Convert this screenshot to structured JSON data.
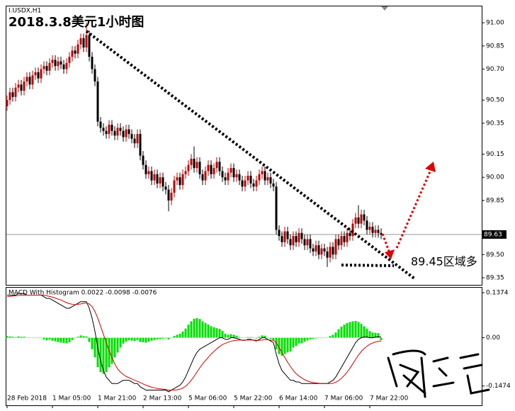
{
  "chart_data": {
    "type": "candlestick",
    "symbol": "I.USDX,H1",
    "title": "2018.3.8美元1小时图",
    "annotation": "89.45区域多",
    "up_color": "#c00000",
    "down_color": "#000000",
    "ylim": [
      89.304,
      91.106
    ],
    "yticks": [
      {
        "value": 91,
        "label": "91.00"
      },
      {
        "value": 90.85,
        "label": "90.85"
      },
      {
        "value": 90.7,
        "label": "90.70"
      },
      {
        "value": 90.5,
        "label": "90.50"
      },
      {
        "value": 90.35,
        "label": "90.35"
      },
      {
        "value": 90.15,
        "label": "90.15"
      },
      {
        "value": 90,
        "label": "90.00"
      },
      {
        "value": 89.85,
        "label": "89.85"
      },
      {
        "value": 89.5,
        "label": "89.50"
      },
      {
        "value": 89.35,
        "label": "89.35"
      }
    ],
    "current_price": 89.63,
    "categories": [
      "28 Feb 2018",
      null,
      null,
      null,
      null,
      null,
      null,
      null,
      null,
      null,
      null,
      null,
      null,
      null,
      null,
      null,
      "1 Mar 05:00",
      null,
      null,
      null,
      null,
      null,
      null,
      null,
      null,
      null,
      null,
      null,
      null,
      null,
      null,
      null,
      "1 Mar 21:00",
      null,
      null,
      null,
      null,
      null,
      null,
      null,
      null,
      null,
      null,
      null,
      null,
      null,
      null,
      null,
      "2 Mar 13:00",
      null,
      null,
      null,
      null,
      null,
      null,
      null,
      null,
      null,
      null,
      null,
      null,
      null,
      null,
      null,
      "5 Mar 06:00",
      null,
      null,
      null,
      null,
      null,
      null,
      null,
      null,
      null,
      null,
      null,
      null,
      null,
      null,
      null,
      "5 Mar 22:00",
      null,
      null,
      null,
      null,
      null,
      null,
      null,
      null,
      null,
      null,
      null,
      null,
      null,
      null,
      null,
      "6 Mar 14:00",
      null,
      null,
      null,
      null,
      null,
      null,
      null,
      null,
      null,
      null,
      null,
      null,
      null,
      null,
      null,
      "7 Mar 06:00",
      null,
      null,
      null,
      null,
      null,
      null,
      null,
      null,
      null,
      null,
      null,
      null,
      null,
      null,
      null,
      "7 Mar 22:00",
      null,
      null,
      null,
      null
    ],
    "open": [
      90.46,
      90.5,
      90.55,
      90.52,
      90.58,
      90.6,
      90.56,
      90.62,
      90.65,
      90.6,
      90.66,
      90.68,
      90.64,
      90.7,
      90.72,
      90.69,
      90.74,
      90.76,
      90.72,
      90.75,
      90.73,
      90.7,
      90.74,
      90.78,
      90.82,
      90.8,
      90.86,
      90.9,
      90.84,
      90.92,
      90.78,
      90.7,
      90.62,
      90.36,
      90.32,
      90.3,
      90.28,
      90.34,
      90.3,
      90.27,
      90.32,
      90.3,
      90.26,
      90.31,
      90.28,
      90.25,
      90.22,
      90.28,
      90.14,
      90.08,
      90.02,
      90.04,
      89.98,
      90.02,
      89.96,
      90.0,
      89.94,
      89.92,
      89.85,
      89.9,
      89.98,
      90.0,
      89.95,
      90.02,
      90.04,
      90.08,
      90.12,
      90.06,
      90.1,
      90.02,
      89.98,
      90.04,
      90.08,
      90.02,
      90.06,
      90.1,
      90.04,
      90.0,
      89.98,
      90.03,
      90.06,
      90.0,
      90.02,
      89.98,
      89.94,
      89.98,
      90.01,
      89.96,
      89.94,
      89.98,
      90.02,
      90.04,
      89.98,
      90.0,
      89.96,
      89.94,
      89.66,
      89.62,
      89.58,
      89.65,
      89.6,
      89.56,
      89.62,
      89.58,
      89.64,
      89.6,
      89.56,
      89.6,
      89.54,
      89.52,
      89.56,
      89.5,
      89.54,
      89.52,
      89.48,
      89.55,
      89.5,
      89.6,
      89.56,
      89.62,
      89.58,
      89.64,
      89.62,
      89.7,
      89.74,
      89.7,
      89.76,
      89.72,
      89.66,
      89.68,
      89.64,
      89.66,
      89.64
    ],
    "high": [
      90.53,
      90.58,
      90.58,
      90.61,
      90.63,
      90.63,
      90.65,
      90.68,
      90.68,
      90.69,
      90.71,
      90.71,
      90.73,
      90.75,
      90.75,
      90.77,
      90.79,
      90.79,
      90.78,
      90.78,
      90.76,
      90.77,
      90.81,
      90.85,
      90.85,
      90.89,
      90.93,
      90.93,
      91.0,
      90.95,
      90.81,
      90.73,
      90.65,
      90.39,
      90.35,
      90.33,
      90.37,
      90.37,
      90.33,
      90.35,
      90.35,
      90.33,
      90.34,
      90.34,
      90.31,
      90.28,
      90.31,
      90.31,
      90.17,
      90.11,
      90.07,
      90.07,
      90.05,
      90.05,
      90.03,
      90.03,
      89.97,
      89.95,
      89.93,
      90.01,
      90.03,
      90.03,
      90.05,
      90.07,
      90.11,
      90.15,
      90.2,
      90.13,
      90.13,
      90.05,
      90.07,
      90.11,
      90.11,
      90.09,
      90.13,
      90.13,
      90.07,
      90.03,
      90.06,
      90.09,
      90.09,
      90.05,
      90.05,
      90.01,
      90.01,
      90.04,
      90.04,
      89.99,
      90.01,
      90.05,
      90.07,
      90.07,
      90.03,
      90.03,
      89.99,
      89.97,
      89.69,
      89.65,
      89.68,
      89.68,
      89.63,
      89.65,
      89.65,
      89.67,
      89.67,
      89.63,
      89.63,
      89.63,
      89.57,
      89.59,
      89.59,
      89.57,
      89.57,
      89.55,
      89.58,
      89.58,
      89.63,
      89.63,
      89.65,
      89.65,
      89.67,
      89.67,
      89.73,
      89.77,
      89.82,
      89.79,
      89.79,
      89.75,
      89.71,
      89.71,
      89.69,
      89.69,
      89.67
    ],
    "low": [
      90.43,
      90.47,
      90.49,
      90.49,
      90.55,
      90.53,
      90.53,
      90.59,
      90.57,
      90.57,
      90.63,
      90.61,
      90.61,
      90.67,
      90.66,
      90.66,
      90.71,
      90.69,
      90.69,
      90.7,
      90.67,
      90.67,
      90.71,
      90.75,
      90.77,
      90.77,
      90.83,
      90.81,
      90.81,
      90.75,
      90.67,
      90.59,
      90.33,
      90.29,
      90.27,
      90.25,
      90.25,
      90.27,
      90.24,
      90.24,
      90.27,
      90.23,
      90.23,
      90.25,
      90.22,
      90.19,
      90.19,
      90.11,
      90.05,
      89.99,
      89.99,
      89.95,
      89.95,
      89.93,
      89.93,
      89.91,
      89.89,
      89.78,
      89.82,
      89.87,
      89.95,
      89.92,
      89.92,
      89.99,
      90.01,
      90.05,
      90.03,
      90.03,
      89.99,
      89.95,
      89.95,
      90.01,
      89.99,
      89.99,
      90.03,
      90.01,
      89.97,
      89.95,
      89.95,
      90.0,
      89.97,
      89.97,
      89.95,
      89.91,
      89.91,
      89.95,
      89.93,
      89.91,
      89.91,
      89.95,
      89.99,
      89.95,
      89.95,
      89.93,
      89.91,
      89.63,
      89.59,
      89.55,
      89.55,
      89.57,
      89.53,
      89.53,
      89.55,
      89.55,
      89.57,
      89.53,
      89.53,
      89.51,
      89.49,
      89.49,
      89.47,
      89.47,
      89.49,
      89.42,
      89.45,
      89.47,
      89.47,
      89.53,
      89.53,
      89.55,
      89.55,
      89.59,
      89.59,
      89.67,
      89.67,
      89.67,
      89.69,
      89.63,
      89.63,
      89.61,
      89.61,
      89.61,
      89.6
    ],
    "close": [
      90.5,
      90.55,
      90.52,
      90.58,
      90.6,
      90.56,
      90.62,
      90.65,
      90.6,
      90.66,
      90.68,
      90.64,
      90.7,
      90.72,
      90.69,
      90.74,
      90.76,
      90.72,
      90.75,
      90.73,
      90.7,
      90.74,
      90.78,
      90.82,
      90.8,
      90.86,
      90.9,
      90.84,
      90.92,
      90.78,
      90.7,
      90.62,
      90.36,
      90.32,
      90.3,
      90.28,
      90.34,
      90.3,
      90.27,
      90.32,
      90.3,
      90.26,
      90.31,
      90.28,
      90.25,
      90.22,
      90.28,
      90.14,
      90.08,
      90.02,
      90.04,
      89.98,
      90.02,
      89.96,
      90.0,
      89.94,
      89.92,
      89.85,
      89.9,
      89.98,
      90.0,
      89.95,
      90.02,
      90.04,
      90.08,
      90.12,
      90.06,
      90.1,
      90.02,
      89.98,
      90.04,
      90.08,
      90.02,
      90.06,
      90.1,
      90.04,
      90.0,
      89.98,
      90.03,
      90.06,
      90.0,
      90.02,
      89.98,
      89.94,
      89.98,
      90.01,
      89.96,
      89.94,
      89.98,
      90.02,
      90.04,
      89.98,
      90.0,
      89.96,
      89.94,
      89.66,
      89.62,
      89.58,
      89.65,
      89.6,
      89.56,
      89.62,
      89.58,
      89.64,
      89.6,
      89.56,
      89.6,
      89.54,
      89.52,
      89.56,
      89.5,
      89.54,
      89.52,
      89.48,
      89.55,
      89.5,
      89.6,
      89.56,
      89.62,
      89.58,
      89.64,
      89.62,
      89.7,
      89.74,
      89.7,
      89.76,
      89.72,
      89.66,
      89.68,
      89.64,
      89.66,
      89.64,
      89.63
    ],
    "macd": {
      "title": "MACD With Histogram 0.0022 -0.0098 -0.0076",
      "ylim": [
        -0.2064,
        0.1527
      ],
      "yticks": [
        0.1374,
        {
          "value": 0,
          "label": "0.00"
        },
        -0.1474
      ],
      "histogram": {
        "color": "#00e000",
        "values": [
          0.005,
          0.004,
          0.003,
          0.002,
          0.004,
          0.003,
          0.003,
          0.0,
          0.0,
          0.0,
          0.0,
          0.0,
          0.0,
          -0.005,
          -0.008,
          -0.006,
          -0.009,
          -0.011,
          -0.013,
          -0.015,
          -0.016,
          -0.017,
          -0.014,
          -0.007,
          -0.001,
          0.003,
          0.007,
          0.005,
          0.004,
          -0.013,
          -0.035,
          -0.06,
          -0.09,
          -0.105,
          -0.11,
          -0.105,
          -0.09,
          -0.08,
          -0.06,
          -0.045,
          -0.03,
          -0.018,
          -0.012,
          -0.008,
          -0.009,
          -0.01,
          -0.007,
          -0.013,
          -0.014,
          -0.015,
          -0.012,
          -0.009,
          -0.007,
          -0.005,
          -0.004,
          -0.003,
          -0.002,
          -0.005,
          0.0,
          0.005,
          0.009,
          0.012,
          0.019,
          0.028,
          0.04,
          0.05,
          0.058,
          0.06,
          0.057,
          0.05,
          0.045,
          0.04,
          0.035,
          0.032,
          0.029,
          0.027,
          0.021,
          0.012,
          0.009,
          0.011,
          0.009,
          0.006,
          0.002,
          -0.001,
          -0.001,
          0.002,
          0.002,
          -0.001,
          -0.002,
          0.003,
          0.007,
          0.006,
          0.001,
          -0.003,
          -0.007,
          -0.035,
          -0.05,
          -0.055,
          -0.05,
          -0.045,
          -0.042,
          -0.03,
          -0.025,
          -0.018,
          -0.017,
          -0.012,
          -0.008,
          -0.005,
          -0.003,
          -0.002,
          -0.001,
          0.0,
          0.0,
          0.0,
          0.005,
          0.009,
          0.016,
          0.026,
          0.034,
          0.04,
          0.045,
          0.048,
          0.05,
          0.051,
          0.048,
          0.042,
          0.035,
          0.028,
          0.02,
          0.016,
          0.015,
          0.014,
          -0.0076
        ]
      },
      "lines": [
        {
          "color": "#000000",
          "values": [
            0.13,
            0.13,
            0.13,
            0.13,
            0.135,
            0.135,
            0.135,
            0.13,
            0.13,
            0.13,
            0.13,
            0.13,
            0.13,
            0.125,
            0.12,
            0.12,
            0.115,
            0.11,
            0.105,
            0.1,
            0.095,
            0.09,
            0.09,
            0.095,
            0.1,
            0.105,
            0.11,
            0.11,
            0.11,
            0.09,
            0.06,
            0.02,
            -0.03,
            -0.07,
            -0.1,
            -0.12,
            -0.13,
            -0.14,
            -0.14,
            -0.14,
            -0.135,
            -0.13,
            -0.13,
            -0.13,
            -0.135,
            -0.14,
            -0.14,
            -0.15,
            -0.155,
            -0.16,
            -0.16,
            -0.16,
            -0.16,
            -0.16,
            -0.16,
            -0.16,
            -0.16,
            -0.165,
            -0.16,
            -0.155,
            -0.15,
            -0.145,
            -0.135,
            -0.12,
            -0.1,
            -0.08,
            -0.06,
            -0.045,
            -0.035,
            -0.03,
            -0.025,
            -0.02,
            -0.015,
            -0.01,
            -0.005,
            0.0,
            0.0,
            -0.005,
            -0.005,
            0.0,
            0.0,
            -0.002,
            -0.005,
            -0.008,
            -0.008,
            -0.005,
            -0.005,
            -0.008,
            -0.01,
            -0.005,
            0.0,
            0.0,
            -0.005,
            -0.01,
            -0.015,
            -0.05,
            -0.08,
            -0.1,
            -0.11,
            -0.12,
            -0.13,
            -0.13,
            -0.135,
            -0.135,
            -0.14,
            -0.14,
            -0.14,
            -0.14,
            -0.14,
            -0.14,
            -0.14,
            -0.14,
            -0.14,
            -0.14,
            -0.135,
            -0.13,
            -0.12,
            -0.105,
            -0.09,
            -0.075,
            -0.06,
            -0.045,
            -0.03,
            -0.015,
            -0.005,
            0.0,
            0.002,
            0.002,
            0.0,
            0.0,
            0.002,
            0.003,
            0.0022
          ]
        },
        {
          "color": "#d00000",
          "values": [
            0.125,
            0.126,
            0.127,
            0.128,
            0.129,
            0.13,
            0.13,
            0.13,
            0.13,
            0.13,
            0.13,
            0.13,
            0.13,
            0.13,
            0.128,
            0.126,
            0.124,
            0.121,
            0.118,
            0.115,
            0.111,
            0.107,
            0.104,
            0.102,
            0.101,
            0.102,
            0.103,
            0.105,
            0.106,
            0.103,
            0.095,
            0.08,
            0.06,
            0.035,
            0.01,
            -0.015,
            -0.04,
            -0.06,
            -0.08,
            -0.095,
            -0.105,
            -0.112,
            -0.118,
            -0.122,
            -0.126,
            -0.13,
            -0.133,
            -0.137,
            -0.141,
            -0.145,
            -0.148,
            -0.151,
            -0.153,
            -0.155,
            -0.156,
            -0.157,
            -0.158,
            -0.16,
            -0.16,
            -0.16,
            -0.159,
            -0.157,
            -0.154,
            -0.148,
            -0.14,
            -0.13,
            -0.118,
            -0.105,
            -0.092,
            -0.08,
            -0.07,
            -0.06,
            -0.05,
            -0.042,
            -0.034,
            -0.027,
            -0.021,
            -0.017,
            -0.014,
            -0.011,
            -0.009,
            -0.008,
            -0.007,
            -0.007,
            -0.007,
            -0.007,
            -0.007,
            -0.007,
            -0.008,
            -0.008,
            -0.007,
            -0.006,
            -0.006,
            -0.007,
            -0.008,
            -0.015,
            -0.03,
            -0.045,
            -0.06,
            -0.075,
            -0.088,
            -0.1,
            -0.11,
            -0.117,
            -0.123,
            -0.128,
            -0.132,
            -0.135,
            -0.137,
            -0.138,
            -0.139,
            -0.14,
            -0.14,
            -0.14,
            -0.14,
            -0.139,
            -0.136,
            -0.131,
            -0.124,
            -0.115,
            -0.105,
            -0.093,
            -0.08,
            -0.066,
            -0.053,
            -0.042,
            -0.033,
            -0.026,
            -0.02,
            -0.016,
            -0.013,
            -0.011,
            -0.0098
          ]
        }
      ]
    }
  }
}
